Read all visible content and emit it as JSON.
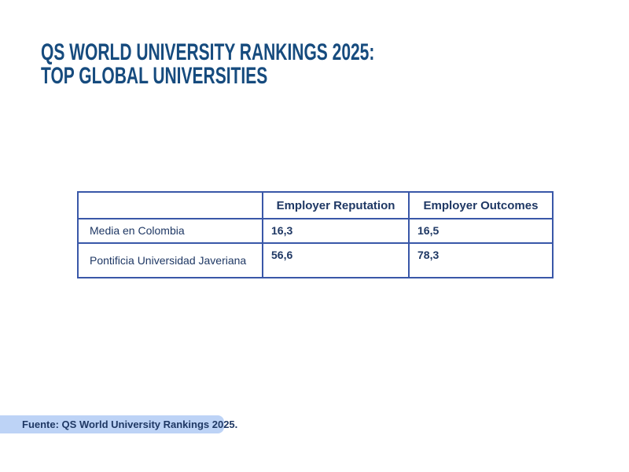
{
  "title": {
    "line1": "QS WORLD UNIVERSITY RANKINGS 2025:",
    "line2": "TOP GLOBAL UNIVERSITIES"
  },
  "table": {
    "columns": [
      "",
      "Employer Reputation",
      "Employer Outcomes"
    ],
    "rows": [
      {
        "label": "Media en Colombia",
        "values": [
          "16,3",
          "16,5"
        ],
        "highlight": false
      },
      {
        "label": "Pontificia Universidad Javeriana",
        "values": [
          "56,6",
          "78,3"
        ],
        "highlight": true
      }
    ]
  },
  "footer": {
    "source": "Fuente: QS World University Rankings 2025."
  },
  "chart_data": {
    "type": "table",
    "title": "QS World University Rankings 2025: Top Global Universities",
    "columns": [
      "",
      "Employer Reputation",
      "Employer Outcomes"
    ],
    "rows": [
      [
        "Media en Colombia",
        16.3,
        16.5
      ],
      [
        "Pontificia Universidad Javeriana",
        56.6,
        78.3
      ]
    ],
    "highlighted_row": "Pontificia Universidad Javeriana",
    "source": "Fuente: QS World University Rankings 2025."
  },
  "colors": {
    "title-color": "#164b7e",
    "navy": "#1f3864",
    "table-border": "#3957a8",
    "hdr-rep-bg": "#8ea9d2",
    "hdr-out-bg": "#cddcf7",
    "highlight": "#fbd45e",
    "footer-bg": "#bdd3f6"
  }
}
